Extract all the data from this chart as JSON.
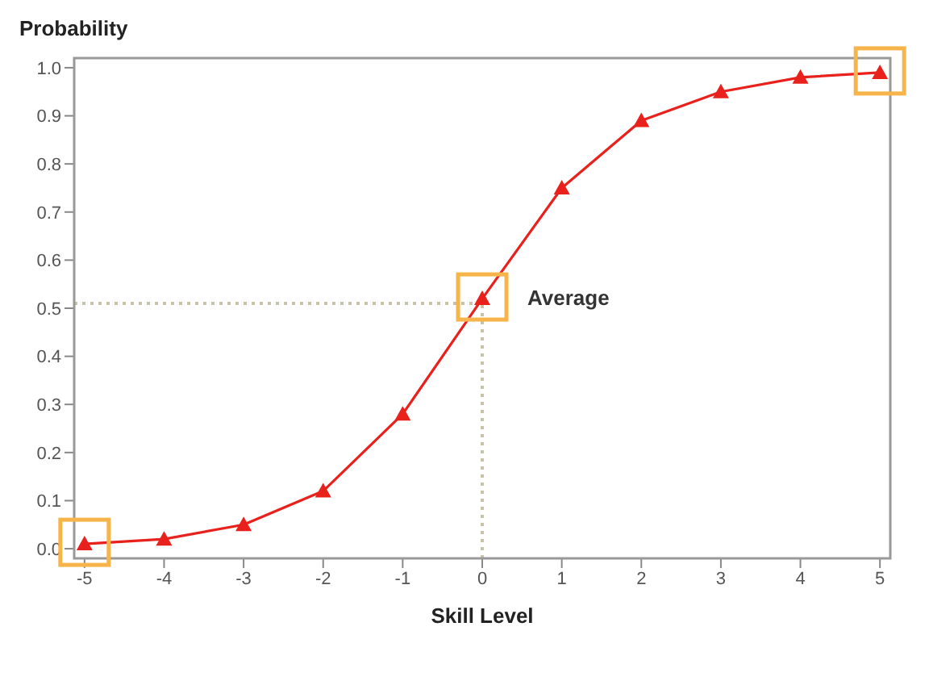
{
  "chart_data": {
    "type": "line",
    "xlabel": "Skill Level",
    "ylabel": "Probability",
    "x": [
      -5,
      -4,
      -3,
      -2,
      -1,
      0,
      1,
      2,
      3,
      4,
      5
    ],
    "series": [
      {
        "color": "#e8211d",
        "values": [
          0.01,
          0.02,
          0.05,
          0.12,
          0.28,
          0.52,
          0.75,
          0.89,
          0.95,
          0.98,
          0.99
        ]
      }
    ],
    "xlim": [
      -5.13,
      5.13
    ],
    "ylim": [
      -0.02,
      1.02
    ],
    "xticks": [
      -5,
      -4,
      -3,
      -2,
      -1,
      0,
      1,
      2,
      3,
      4,
      5
    ],
    "yticks": [
      {
        "value": 0,
        "label": "0.0"
      },
      0.1,
      0.2,
      0.3,
      0.4,
      0.5,
      0.6,
      0.7,
      0.8,
      0.9,
      {
        "value": 1,
        "label": "1.0"
      }
    ],
    "marker": "triangle",
    "line_style": "solid",
    "grid": false,
    "legend": false,
    "ref_lines": [
      {
        "axis": "y",
        "value": 0.51,
        "color": "#c8c3a8",
        "line_style": "dotted"
      },
      {
        "axis": "x",
        "value": 0,
        "color": "#c8c3a8",
        "line_style": "dotted"
      }
    ],
    "annotations": [
      {
        "text": "Average",
        "x": 0,
        "y": 0.52
      }
    ]
  }
}
